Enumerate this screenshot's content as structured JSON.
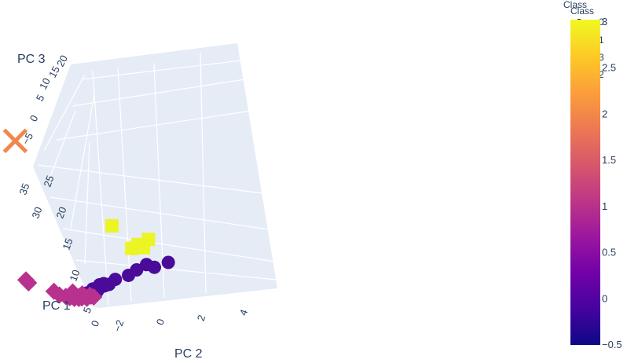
{
  "chart_data": {
    "type": "scatter3d",
    "axes": {
      "x": {
        "label": "PC 1",
        "ticks": [
          "0",
          "5",
          "10",
          "15",
          "20",
          "25",
          "30",
          "35"
        ]
      },
      "y": {
        "label": "PC 2",
        "ticks": [
          "−2",
          "0",
          "2",
          "4"
        ]
      },
      "z": {
        "label": "PC 3",
        "ticks": [
          "−5",
          "0",
          "5",
          "10",
          "15",
          "20"
        ]
      }
    },
    "legend": {
      "title": "Class",
      "title_overlap": "Class",
      "entries": [
        "0",
        "1",
        "3",
        "2"
      ]
    },
    "colorbar": {
      "title": "Class",
      "range": [
        -0.5,
        3
      ],
      "ticks": [
        "3",
        "2.5",
        "2",
        "1.5",
        "1",
        "0.5",
        "0",
        "−0.5"
      ],
      "colors": [
        "#0d0887",
        "#46039f",
        "#7201a8",
        "#9c179e",
        "#bd3786",
        "#d8576b",
        "#ed7953",
        "#fb9f3a",
        "#fdca26",
        "#f0f921"
      ]
    },
    "series": [
      {
        "name": "0",
        "class": 0,
        "symbol": "circle",
        "color": "#4a0a9a",
        "points": [
          [
            1.5,
            -1.0,
            2.0
          ],
          [
            2.0,
            -0.8,
            1.8
          ],
          [
            2.5,
            -0.5,
            2.1
          ],
          [
            3.0,
            -0.2,
            1.9
          ],
          [
            3.5,
            0.0,
            2.2
          ],
          [
            4.0,
            0.3,
            2.0
          ],
          [
            4.5,
            0.5,
            2.3
          ],
          [
            5.0,
            0.8,
            2.1
          ],
          [
            2.2,
            0.1,
            2.6
          ],
          [
            3.2,
            0.4,
            2.7
          ],
          [
            4.2,
            1.0,
            2.4
          ],
          [
            5.5,
            1.5,
            2.5
          ],
          [
            6.0,
            2.3,
            2.8
          ],
          [
            6.5,
            2.8,
            3.6
          ],
          [
            7.0,
            3.4,
            4.3
          ],
          [
            8.0,
            4.0,
            2.6
          ],
          [
            9.0,
            4.9,
            2.7
          ],
          [
            3.8,
            0.7,
            2.5
          ]
        ]
      },
      {
        "name": "1",
        "class": 1,
        "symbol": "diamond",
        "color": "#b8318f",
        "points": [
          [
            3.5,
            -2.2,
            2.6
          ],
          [
            2.5,
            -2.0,
            2.3
          ],
          [
            2.0,
            -1.7,
            2.2
          ],
          [
            1.7,
            -1.5,
            2.0
          ],
          [
            1.2,
            -1.3,
            2.1
          ],
          [
            1.4,
            -1.0,
            2.4
          ],
          [
            1.0,
            -0.9,
            2.2
          ],
          [
            0.8,
            -1.1,
            2.3
          ],
          [
            1.1,
            -0.6,
            1.9
          ],
          [
            1.5,
            -0.4,
            2.3
          ],
          [
            1.2,
            -0.2,
            2.0
          ],
          [
            0.9,
            -0.4,
            2.5
          ],
          [
            1.8,
            -0.8,
            2.6
          ],
          [
            2.2,
            -1.3,
            3.0
          ],
          [
            5.5,
            -3.6,
            4.6
          ],
          [
            5.0,
            -3.5,
            4.2
          ]
        ]
      },
      {
        "name": "2",
        "class": 2,
        "symbol": "x",
        "color": "#f0884e",
        "points": [
          [
            31,
            -1.6,
            20
          ]
        ]
      },
      {
        "name": "3",
        "class": 3,
        "symbol": "square",
        "color": "#ecf424",
        "points": [
          [
            15.2,
            2.3,
            8.5
          ],
          [
            11.5,
            3.4,
            6.0
          ],
          [
            11.0,
            3.9,
            7.5
          ],
          [
            11.0,
            3.0,
            5.6
          ],
          [
            10.5,
            3.6,
            5.9
          ]
        ]
      }
    ]
  }
}
